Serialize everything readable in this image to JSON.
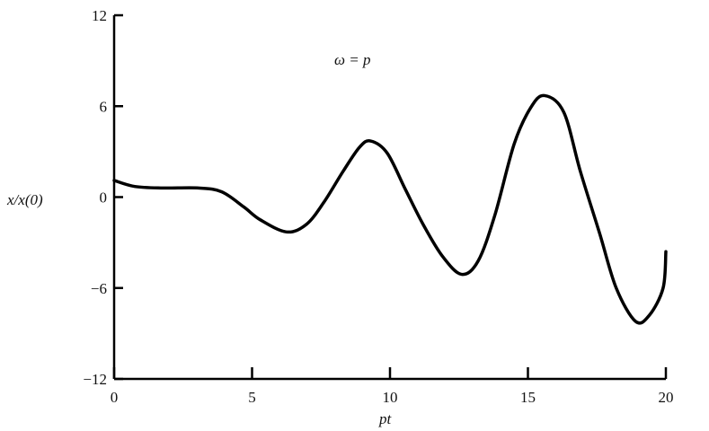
{
  "chart_data": {
    "type": "line",
    "title": "",
    "annotation": "ω = p",
    "xlabel": "pt",
    "ylabel": "x/x(0)",
    "xlim": [
      0,
      20
    ],
    "ylim": [
      -12,
      12
    ],
    "xticks": [
      0,
      5,
      10,
      15,
      20
    ],
    "yticks": [
      -12,
      -6,
      0,
      6,
      12
    ],
    "xtick_labels": [
      "0",
      "5",
      "10",
      "15",
      "20"
    ],
    "ytick_labels": [
      "−12",
      "−6",
      "0",
      "6",
      "12"
    ],
    "grid": false,
    "line_color": "#000000",
    "series": [
      {
        "x": [
          0,
          0.75,
          1.76,
          3.06,
          3.9,
          4.7,
          5.3,
          6.25,
          6.97,
          7.6,
          8.3,
          8.9,
          9.3,
          9.9,
          10.56,
          11.2,
          11.9,
          12.6,
          13.2,
          13.8,
          14.5,
          15.1,
          15.6,
          16.3,
          16.9,
          17.6,
          18.2,
          18.9,
          19.4,
          19.9,
          20
        ],
        "y": [
          1.1,
          0.7,
          0.6,
          0.6,
          0.35,
          -0.65,
          -1.5,
          -2.3,
          -1.8,
          -0.35,
          1.7,
          3.3,
          3.7,
          2.9,
          0.5,
          -1.8,
          -3.9,
          -5.1,
          -4.2,
          -1.2,
          3.5,
          5.9,
          6.7,
          5.6,
          1.7,
          -2.4,
          -6.0,
          -8.2,
          -7.8,
          -6.0,
          -3.6
        ]
      }
    ]
  }
}
